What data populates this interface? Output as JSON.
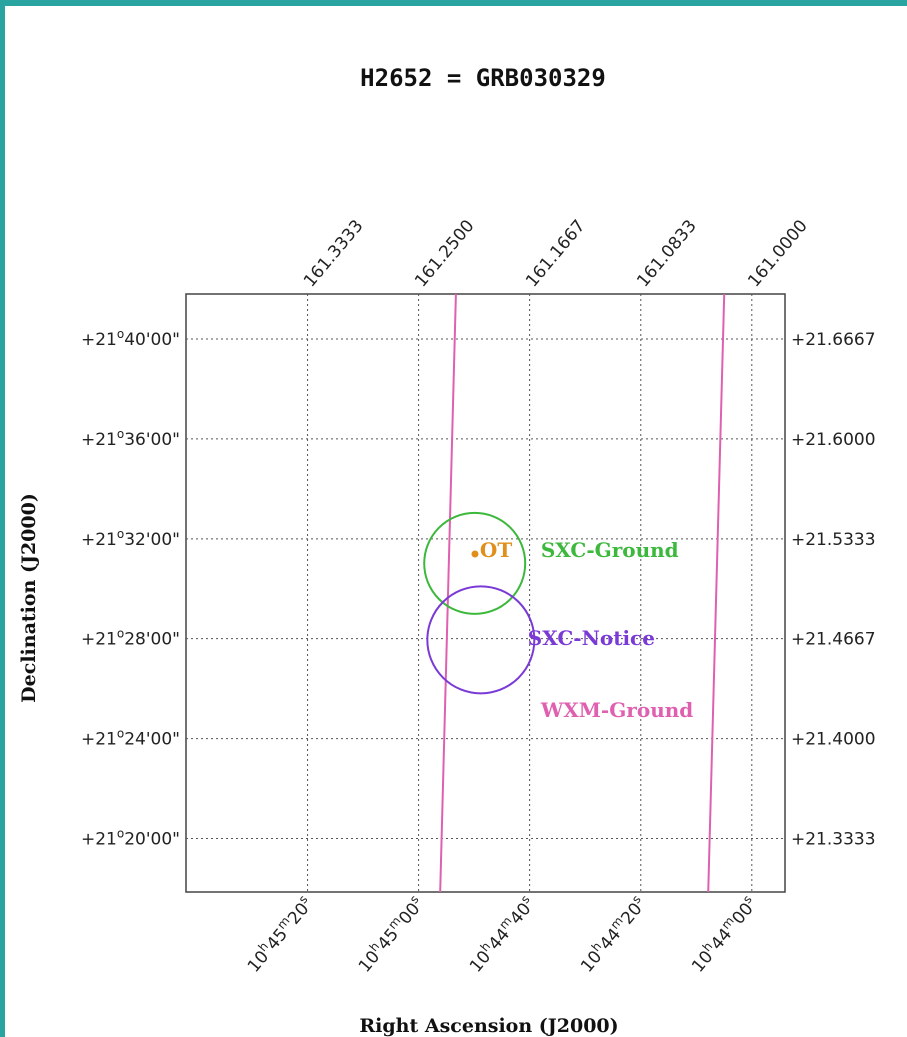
{
  "chart_data": {
    "type": "scatter",
    "title": "H2652 = GRB030329",
    "xlabel": "Right Ascension (J2000)",
    "ylabel": "Declination (J2000)",
    "grid": true,
    "x_ticks_top": [
      "161.3333",
      "161.2500",
      "161.1667",
      "161.0833",
      "161.0000"
    ],
    "x_ticks_top_values": [
      161.3333,
      161.25,
      161.1667,
      161.0833,
      161.0
    ],
    "x_ticks_bottom": [
      {
        "h": "10",
        "m": "45",
        "s": "20"
      },
      {
        "h": "10",
        "m": "45",
        "s": "00"
      },
      {
        "h": "10",
        "m": "44",
        "s": "40"
      },
      {
        "h": "10",
        "m": "44",
        "s": "20"
      },
      {
        "h": "10",
        "m": "44",
        "s": "00"
      }
    ],
    "y_ticks_left": [
      {
        "d": "+21",
        "ms": "40'00\""
      },
      {
        "d": "+21",
        "ms": "36'00\""
      },
      {
        "d": "+21",
        "ms": "32'00\""
      },
      {
        "d": "+21",
        "ms": "28'00\""
      },
      {
        "d": "+21",
        "ms": "24'00\""
      },
      {
        "d": "+21",
        "ms": "20'00\""
      }
    ],
    "y_ticks_right": [
      "+21.6667",
      "+21.6000",
      "+21.5333",
      "+21.4667",
      "+21.4000",
      "+21.3333"
    ],
    "y_ticks_values": [
      21.6667,
      21.6,
      21.5333,
      21.4667,
      21.4,
      21.3333
    ],
    "xlim": [
      161.4245,
      160.9751
    ],
    "ylim": [
      21.2976,
      21.6967
    ],
    "degree_symbol": "o",
    "minute_symbol": "m",
    "second_symbol": "s",
    "hour_symbol": "h",
    "regions": [
      {
        "name": "SXC-Ground",
        "shape": "circle",
        "ra": 161.2079,
        "dec": 21.5169,
        "radius_deg": 0.0337,
        "color": "#3cb83c"
      },
      {
        "name": "SXC-Notice",
        "shape": "circle",
        "ra": 161.2033,
        "dec": 21.4659,
        "radius_deg": 0.0357,
        "color": "#7a3ad6"
      }
    ],
    "wxm_lines": [
      {
        "ra_top": 161.222,
        "ra_bottom": 161.2338
      },
      {
        "ra_top": 161.0207,
        "ra_bottom": 161.0327
      }
    ],
    "ot": {
      "name": "OT",
      "ra": 161.2077,
      "dec": 21.5232,
      "color": "#e0901a"
    },
    "annotations": [
      {
        "text": "OT",
        "ra": 161.204,
        "dec": 21.526,
        "color": "#e0901a"
      },
      {
        "text": "SXC-Ground",
        "ra": 161.1583,
        "dec": 21.526,
        "color": "#3cb83c"
      },
      {
        "text": "SXC-Notice",
        "ra": 161.1681,
        "dec": 21.467,
        "color": "#7a3ad6"
      },
      {
        "text": "WXM-Ground",
        "ra": 161.1583,
        "dec": 21.4189,
        "color": "#e060b0"
      }
    ],
    "wxm_color": "#e060b0",
    "grid_color": "#555555"
  }
}
